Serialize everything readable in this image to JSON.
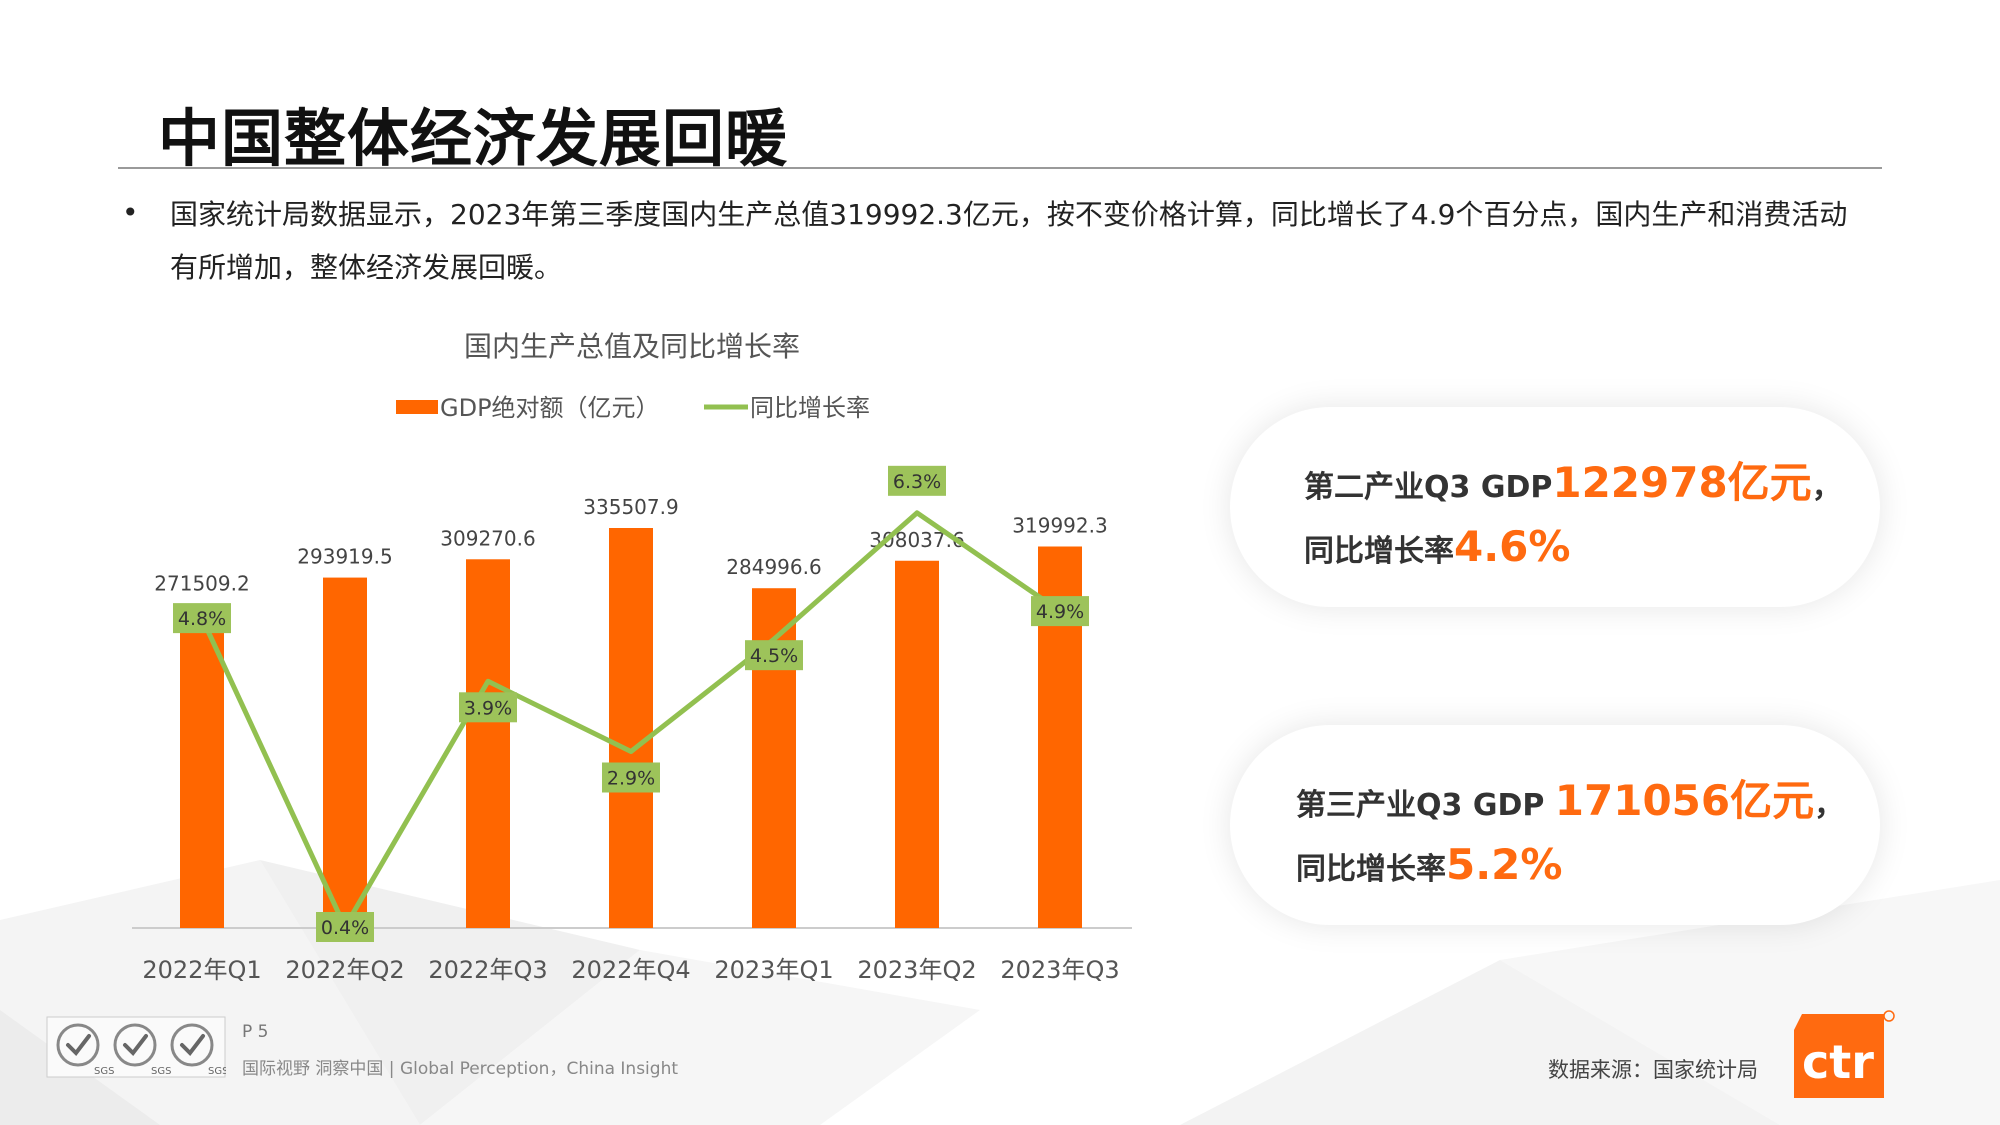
{
  "page": {
    "title": "中国整体经济发展回暖",
    "bullet": "国家统计局数据显示，2023年第三季度国内生产总值319992.3亿元，按不变价格计算，同比增长了4.9个百分点，国内生产和消费活动有所增加，整体经济发展回暖。"
  },
  "chart_data": {
    "type": "bar",
    "title": "国内生产总值及同比增长率",
    "categories": [
      "2022年Q1",
      "2022年Q2",
      "2022年Q3",
      "2022年Q4",
      "2023年Q1",
      "2023年Q2",
      "2023年Q3"
    ],
    "series": [
      {
        "name": "GDP绝对额（亿元）",
        "type": "bar",
        "color": "#ff6600",
        "values": [
          271509.2,
          293919.5,
          309270.6,
          335507.9,
          284996.6,
          308037.6,
          319992.3
        ],
        "labels": [
          "271509.2",
          "293919.5",
          "309270.6",
          "335507.9",
          "284996.6",
          "308037.6",
          "319992.3"
        ]
      },
      {
        "name": "同比增长率",
        "type": "line",
        "color": "#92c050",
        "values": [
          4.8,
          0.4,
          3.9,
          2.9,
          4.5,
          6.3,
          4.9
        ],
        "labels": [
          "4.8%",
          "0.4%",
          "3.9%",
          "2.9%",
          "4.5%",
          "6.3%",
          "4.9%"
        ]
      }
    ],
    "legend_position": "top",
    "grid": false
  },
  "cards": [
    {
      "prefix": "第二产业Q3 GDP",
      "value": "122978亿元",
      "suffix": "，",
      "rate_prefix": "同比增长率",
      "rate": "4.6%"
    },
    {
      "prefix": "第三产业Q3 GDP ",
      "value": "171056亿元",
      "suffix": "，",
      "rate_prefix": "同比增长率",
      "rate": "5.2%"
    }
  ],
  "footer": {
    "page_number": "P 5",
    "tagline": "国际视野  洞察中国 |  Global Perception，China Insight",
    "source": "数据来源：国家统计局",
    "logo_text": "ctr",
    "badge_label": "SGS"
  },
  "colors": {
    "accent": "#ff6a10",
    "bar": "#ff6600",
    "line": "#92c050",
    "label_box": "#9dc35a"
  },
  "icons": {
    "certification": "sgs-certification-icon",
    "logo": "ctr-logo-icon"
  }
}
